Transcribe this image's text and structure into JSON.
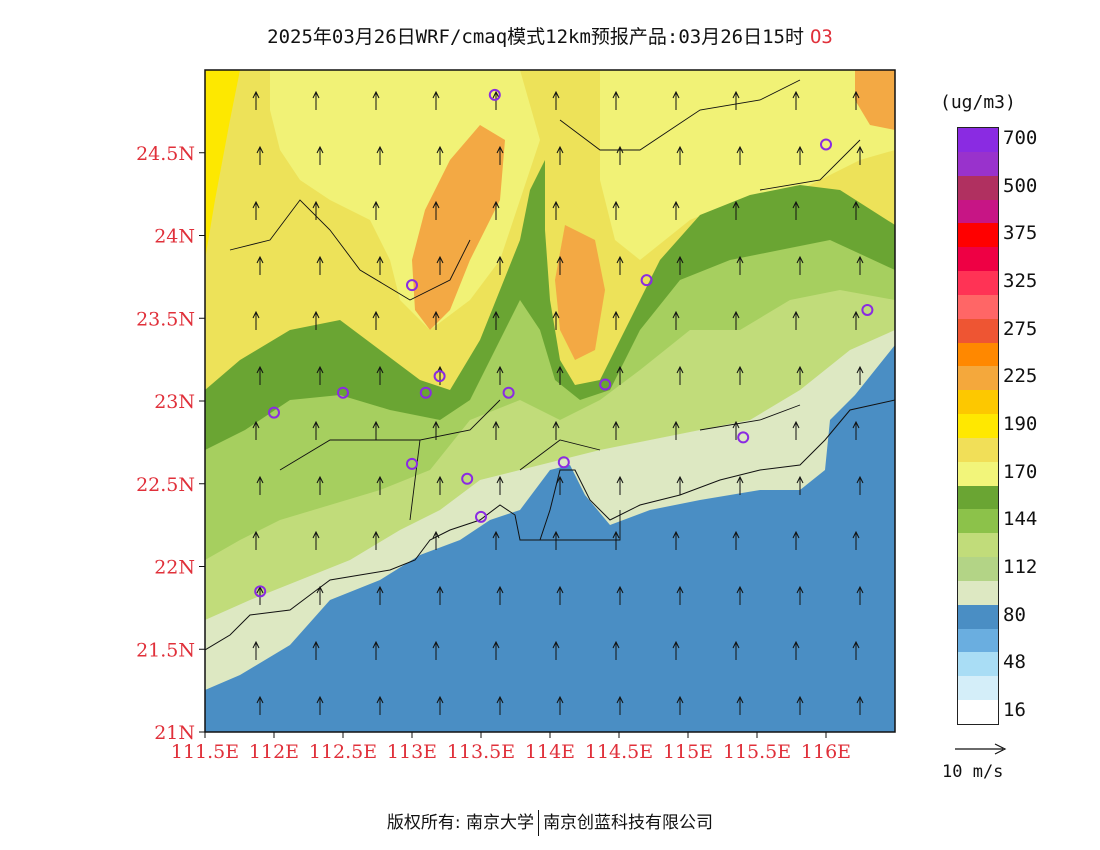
{
  "title": {
    "text": "2025年03月26日WRF/cmaq模式12km预报产品:03月26日15时",
    "pollutant": "O3"
  },
  "map": {
    "lat_ticks": [
      "24.5N",
      "24N",
      "23.5N",
      "23N",
      "22.5N",
      "22N",
      "21.5N",
      "21N"
    ],
    "lon_ticks": [
      "111.5E",
      "112E",
      "112.5E",
      "113E",
      "113.5E",
      "114E",
      "114.5E",
      "115E",
      "115.5E",
      "116E"
    ],
    "extent": {
      "lon": [
        111.5,
        116.5
      ],
      "lat": [
        21,
        25
      ]
    },
    "colors": {
      "sea": "#4a8ec4",
      "band_80": "#dde8c2",
      "band_112": "#c1dc7a",
      "band_128": "#a6cf5f",
      "band_144": "#6aa533",
      "band_170": "#f1f276",
      "band_180": "#ede259",
      "band_190": "#fde800",
      "band_225": "#f3a944"
    },
    "stations": [
      {
        "lon": 113.6,
        "lat": 24.85
      },
      {
        "lon": 116.0,
        "lat": 24.55
      },
      {
        "lon": 113.0,
        "lat": 23.7
      },
      {
        "lon": 114.7,
        "lat": 23.73
      },
      {
        "lon": 116.3,
        "lat": 23.55
      },
      {
        "lon": 113.2,
        "lat": 23.15
      },
      {
        "lon": 113.1,
        "lat": 23.05
      },
      {
        "lon": 112.5,
        "lat": 23.05
      },
      {
        "lon": 112.0,
        "lat": 22.93
      },
      {
        "lon": 113.7,
        "lat": 23.05
      },
      {
        "lon": 114.4,
        "lat": 23.1
      },
      {
        "lon": 115.4,
        "lat": 22.78
      },
      {
        "lon": 114.1,
        "lat": 22.63
      },
      {
        "lon": 113.0,
        "lat": 22.62
      },
      {
        "lon": 113.4,
        "lat": 22.53
      },
      {
        "lon": 113.5,
        "lat": 22.3
      },
      {
        "lon": 111.9,
        "lat": 21.85
      }
    ]
  },
  "colorbar": {
    "unit": "(ug/m3)",
    "levels": [
      {
        "label": "700",
        "color": "#8a2be2"
      },
      {
        "label": "",
        "color": "#9932cc"
      },
      {
        "label": "500",
        "color": "#b03060"
      },
      {
        "label": "",
        "color": "#c71585"
      },
      {
        "label": "375",
        "color": "#ff0000"
      },
      {
        "label": "",
        "color": "#ee0044"
      },
      {
        "label": "325",
        "color": "#ff3355"
      },
      {
        "label": "",
        "color": "#ff6666"
      },
      {
        "label": "275",
        "color": "#ee5533"
      },
      {
        "label": "",
        "color": "#ff8800"
      },
      {
        "label": "225",
        "color": "#f4a83c"
      },
      {
        "label": "",
        "color": "#fdc800"
      },
      {
        "label": "190",
        "color": "#ffe800"
      },
      {
        "label": "",
        "color": "#f1df58"
      },
      {
        "label": "170",
        "color": "#f2f57a"
      },
      {
        "label": "",
        "color": "#6aa533"
      },
      {
        "label": "144",
        "color": "#8cc24a"
      },
      {
        "label": "",
        "color": "#c1dc7a"
      },
      {
        "label": "112",
        "color": "#b3d486"
      },
      {
        "label": "",
        "color": "#dde8c2"
      },
      {
        "label": "80",
        "color": "#4a8ec4"
      },
      {
        "label": "",
        "color": "#6aaee0"
      },
      {
        "label": "48",
        "color": "#a9ddf5"
      },
      {
        "label": "",
        "color": "#d4eef9"
      },
      {
        "label": "16",
        "color": "#ffffff"
      }
    ]
  },
  "wind_reference": {
    "label": "10 m/s"
  },
  "footer": {
    "left": "版权所有: 南京大学",
    "right": "南京创蓝科技有限公司"
  }
}
